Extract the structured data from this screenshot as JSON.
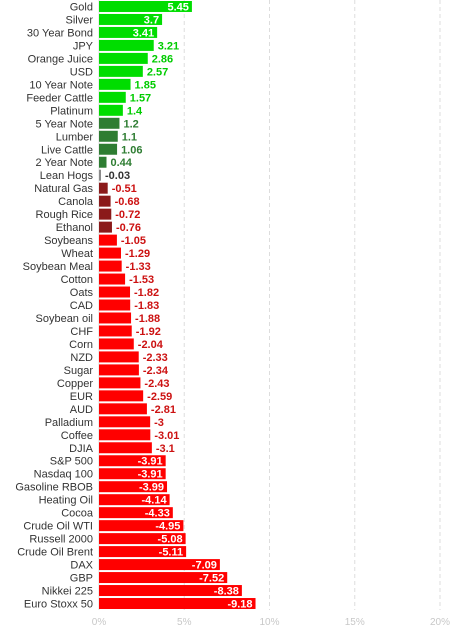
{
  "chart_data": {
    "type": "bar",
    "orientation": "horizontal",
    "xlim": [
      0,
      21
    ],
    "x_ticks": [
      0,
      5,
      10,
      15,
      20
    ],
    "x_tick_labels": [
      "0%",
      "5%",
      "10%",
      "15%",
      "20%"
    ],
    "grid": true,
    "bar_baseline": "left",
    "categories": [
      "Gold",
      "Silver",
      "30 Year Bond",
      "JPY",
      "Orange Juice",
      "USD",
      "10 Year Note",
      "Feeder Cattle",
      "Platinum",
      "5 Year Note",
      "Lumber",
      "Live Cattle",
      "2 Year Note",
      "Lean Hogs",
      "Natural Gas",
      "Canola",
      "Rough Rice",
      "Ethanol",
      "Soybeans",
      "Wheat",
      "Soybean Meal",
      "Cotton",
      "Oats",
      "CAD",
      "Soybean oil",
      "CHF",
      "Corn",
      "NZD",
      "Sugar",
      "Copper",
      "EUR",
      "AUD",
      "Palladium",
      "Coffee",
      "DJIA",
      "S&P 500",
      "Nasdaq 100",
      "Gasoline RBOB",
      "Heating Oil",
      "Cocoa",
      "Crude Oil WTI",
      "Russell 2000",
      "Crude Oil Brent",
      "DAX",
      "GBP",
      "Nikkei 225",
      "Euro Stoxx 50"
    ],
    "values": [
      5.45,
      3.7,
      3.41,
      3.21,
      2.86,
      2.57,
      1.85,
      1.57,
      1.4,
      1.2,
      1.1,
      1.06,
      0.44,
      -0.03,
      -0.51,
      -0.68,
      -0.72,
      -0.76,
      -1.05,
      -1.29,
      -1.33,
      -1.53,
      -1.82,
      -1.83,
      -1.88,
      -1.92,
      -2.04,
      -2.33,
      -2.34,
      -2.43,
      -2.59,
      -2.81,
      -3,
      -3.01,
      -3.1,
      -3.91,
      -3.91,
      -3.99,
      -4.14,
      -4.33,
      -4.95,
      -5.08,
      -5.11,
      -7.09,
      -7.52,
      -8.38,
      -9.18
    ],
    "value_labels": [
      "5.45",
      "3.7",
      "3.41",
      "3.21",
      "2.86",
      "2.57",
      "1.85",
      "1.57",
      "1.4",
      "1.2",
      "1.1",
      "1.06",
      "0.44",
      "-0.03",
      "-0.51",
      "-0.68",
      "-0.72",
      "-0.76",
      "-1.05",
      "-1.29",
      "-1.33",
      "-1.53",
      "-1.82",
      "-1.83",
      "-1.88",
      "-1.92",
      "-2.04",
      "-2.33",
      "-2.34",
      "-2.43",
      "-2.59",
      "-2.81",
      "-3",
      "-3.01",
      "-3.1",
      "-3.91",
      "-3.91",
      "-3.99",
      "-4.14",
      "-4.33",
      "-4.95",
      "-5.08",
      "-5.11",
      "-7.09",
      "-7.52",
      "-8.38",
      "-9.18"
    ],
    "colors": {
      "positive_strong": "#00dd00",
      "positive_weak": "#2e7d32",
      "near_zero": "#8a8a8a",
      "negative_weak": "#8b1a1a",
      "negative_strong": "#ff0000",
      "positive_label": "#00cc00",
      "positive_weak_label": "#2e7d32",
      "near_zero_label": "#333333",
      "negative_label": "#cc1111",
      "inside_label": "#ffffff",
      "grid": "#dddddd",
      "tick_label": "#c8c8c8",
      "category_label": "#333333"
    }
  }
}
